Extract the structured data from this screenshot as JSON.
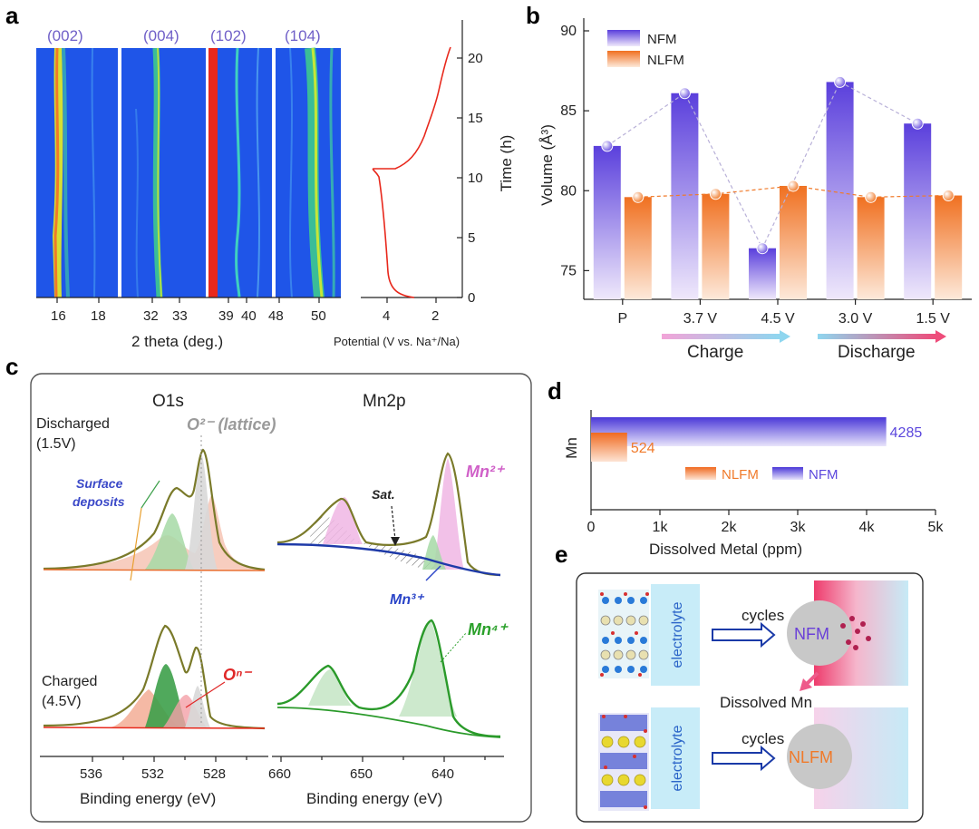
{
  "panels": {
    "a": "a",
    "b": "b",
    "c": "c",
    "d": "d",
    "e": "e"
  },
  "panel_a": {
    "peaks": [
      "(002)",
      "(004)",
      "(102)",
      "(104)"
    ],
    "xticks": [
      "16",
      "18",
      "32",
      "33",
      "39",
      "40",
      "48",
      "50"
    ],
    "xlabel": "2 theta (deg.)",
    "time_ticks": [
      "0",
      "5",
      "10",
      "15",
      "20"
    ],
    "time_label": "Time (h)",
    "pot_ticks": [
      "4",
      "2"
    ],
    "pot_label": "Potential (V vs. Na⁺/Na)",
    "colors": {
      "bg": "#1f55e8",
      "peak": "#e8f020",
      "edge": "#e8281c"
    }
  },
  "panel_c": {
    "o1s_title": "O1s",
    "mn2p_title": "Mn2p",
    "discharged": "Discharged",
    "discharged_v": "(1.5V)",
    "charged": "Charged",
    "charged_v": "(4.5V)",
    "lattice": "O²⁻ (lattice)",
    "surface1": "Surface",
    "surface2": "deposits",
    "on": "Oⁿ⁻",
    "sat": "Sat.",
    "mn2": "Mn²⁺",
    "mn3": "Mn³⁺",
    "mn4": "Mn⁴⁺",
    "o_ticks": [
      "536",
      "532",
      "528"
    ],
    "mn_ticks": [
      "660",
      "650",
      "640"
    ],
    "xlabel": "Binding energy (eV)"
  },
  "panel_e": {
    "electrolyte": "electrolyte",
    "cycles": "cycles",
    "nfm": "NFM",
    "nlfm": "NLFM",
    "dissolved": "Dissolved Mn"
  },
  "chart_data": [
    {
      "id": "b",
      "type": "bar",
      "categories": [
        "P",
        "3.7 V",
        "4.5 V",
        "3.0 V",
        "1.5 V"
      ],
      "series": [
        {
          "name": "NFM",
          "values": [
            82.8,
            86.1,
            76.4,
            86.8,
            84.2
          ],
          "color": "#6a4ce0"
        },
        {
          "name": "NLFM",
          "values": [
            79.6,
            79.8,
            80.3,
            79.6,
            79.7
          ],
          "color": "#f07a2a"
        }
      ],
      "ylabel": "Volume (Å³)",
      "ylim": [
        74,
        90
      ],
      "yticks": [
        75,
        80,
        85,
        90
      ],
      "process_labels": [
        "Charge",
        "Discharge"
      ],
      "legend": "top-left"
    },
    {
      "id": "d",
      "type": "bar",
      "orientation": "horizontal",
      "categories": [
        "Mn"
      ],
      "series": [
        {
          "name": "NFM",
          "values": [
            4285
          ],
          "color": "#5b47dd"
        },
        {
          "name": "NLFM",
          "values": [
            524
          ],
          "color": "#f07a2a"
        }
      ],
      "value_labels": [
        "4285",
        "524"
      ],
      "xlabel": "Dissolved Metal (ppm)",
      "xlim": [
        0,
        5000
      ],
      "xtick_labels": [
        "0",
        "1k",
        "2k",
        "3k",
        "4k",
        "5k"
      ],
      "legend": "bottom-center"
    }
  ]
}
